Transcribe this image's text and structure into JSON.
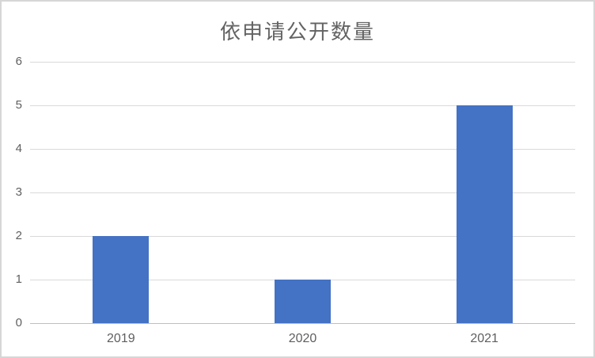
{
  "chart_data": {
    "type": "bar",
    "title": "依申请公开数量",
    "categories": [
      "2019",
      "2020",
      "2021"
    ],
    "values": [
      2,
      1,
      5
    ],
    "xlabel": "",
    "ylabel": "",
    "ylim": [
      0,
      6
    ],
    "yticks": [
      0,
      1,
      2,
      3,
      4,
      5,
      6
    ],
    "grid": "horizontal",
    "legend_position": "none",
    "colors": {
      "bar": "#4472c4",
      "gridline": "#d9d9d9",
      "axis_line": "#bfbfbf",
      "text": "#5f5f5f",
      "title_text": "#636363",
      "outer_border": "#d6d6d6",
      "background": "#ffffff"
    }
  }
}
